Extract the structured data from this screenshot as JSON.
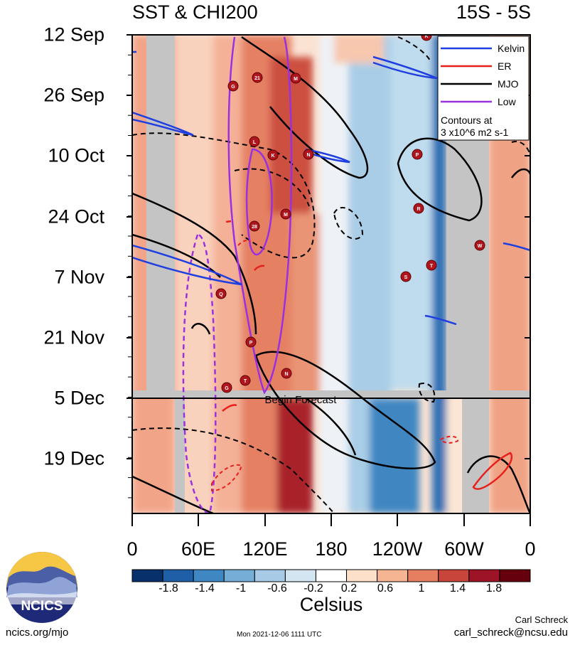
{
  "header": {
    "title_left": "SST & CHI200",
    "title_right": "15S - 5S"
  },
  "chart_data": {
    "type": "heatmap",
    "title": "SST & CHI200",
    "region": "15S - 5S",
    "x_axis": {
      "tick_labels": [
        "0",
        "60E",
        "120E",
        "180",
        "120W",
        "60W",
        "0"
      ],
      "range_deg_east": [
        0,
        360
      ]
    },
    "y_axis": {
      "tick_labels": [
        "12 Sep",
        "26 Sep",
        "10 Oct",
        "24 Oct",
        "7 Nov",
        "21 Nov",
        "5 Dec",
        "19 Dec"
      ],
      "reversed": true
    },
    "forecast_marker": {
      "label": "Begin Forecast",
      "date": "5 Dec"
    },
    "colorbar": {
      "title": "Celsius",
      "tick_labels": [
        "-1.8",
        "-1.4",
        "-1",
        "-0.6",
        "-0.2",
        "0.2",
        "0.6",
        "1",
        "1.4",
        "1.8"
      ],
      "colors": [
        "#08306b",
        "#1f5fa8",
        "#3f87c2",
        "#74add6",
        "#a7cbe6",
        "#d4e5f2",
        "#ffffff",
        "#fde0c9",
        "#f6b592",
        "#e57f5f",
        "#c7453a",
        "#9e1427",
        "#67000d"
      ]
    },
    "legend": {
      "position": "top-right",
      "items": [
        {
          "label": "Kelvin",
          "color": "#1f3fe0"
        },
        {
          "label": "ER",
          "color": "#e8201c"
        },
        {
          "label": "MJO",
          "color": "#000000"
        },
        {
          "label": "Low",
          "color": "#9b30e0"
        }
      ],
      "note_line1": "Contours at",
      "note_line2": "3 x10^6 m2 s-1"
    },
    "storm_markers": [
      "K",
      "G",
      "21",
      "M",
      "L",
      "K",
      "N",
      "P",
      "R",
      "28",
      "M",
      "W",
      "T",
      "S",
      "Q",
      "P",
      "T",
      "G",
      "N"
    ]
  },
  "footer": {
    "logo_text": "NCICS",
    "url": "ncics.org/mjo",
    "timestamp": "Mon 2021-12-06 1111 UTC",
    "credit_name": "Carl Schreck",
    "credit_email": "carl_schreck@ncsu.edu"
  }
}
